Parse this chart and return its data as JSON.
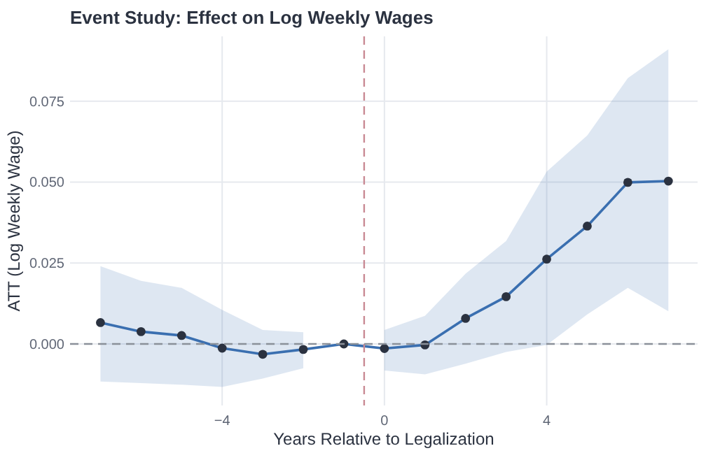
{
  "chart_data": {
    "type": "line",
    "title": "Event Study: Effect on Log Weekly Wages",
    "xlabel": "Years Relative to Legalization",
    "ylabel": "ATT (Log Weekly Wage)",
    "x": [
      -7,
      -6,
      -5,
      -4,
      -3,
      -2,
      -1,
      0,
      1,
      2,
      3,
      4,
      5,
      6,
      7
    ],
    "series": [
      {
        "color": "#3a6fb0",
        "values": [
          0.0066,
          0.0038,
          0.0026,
          -0.0013,
          -0.0032,
          -0.0017,
          0.0,
          -0.0014,
          -0.0003,
          0.0079,
          0.0146,
          0.0262,
          0.0364,
          0.0499,
          0.0503
        ],
        "lower": [
          -0.0116,
          -0.0121,
          -0.0126,
          -0.0133,
          -0.0107,
          -0.0075,
          null,
          -0.0082,
          -0.0094,
          -0.0061,
          -0.0025,
          -0.0003,
          0.0091,
          0.0173,
          0.0101
        ],
        "upper": [
          0.024,
          0.0195,
          0.0173,
          0.0105,
          0.0043,
          0.0036,
          null,
          0.0043,
          0.0087,
          0.0217,
          0.0318,
          0.0532,
          0.0644,
          0.0821,
          0.091
        ]
      }
    ],
    "xlim": [
      -7.75,
      7.72
    ],
    "ylim": [
      -0.019,
      0.095
    ],
    "xticks": [
      -4,
      0,
      4
    ],
    "yticks": [
      {
        "value": 0,
        "label": "0.000"
      },
      {
        "value": 0.025,
        "label": "0.025"
      },
      {
        "value": 0.05,
        "label": "0.050"
      },
      {
        "value": 0.075,
        "label": "0.075"
      }
    ],
    "grid": true,
    "marker": "circle",
    "line_style": "solid",
    "ref_lines": [
      {
        "axis": "x",
        "value": -0.5,
        "color": "#c98a94",
        "line_style": "dashed"
      },
      {
        "axis": "y",
        "value": 0,
        "color": "#8a9099",
        "line_style": "dashed"
      }
    ]
  }
}
